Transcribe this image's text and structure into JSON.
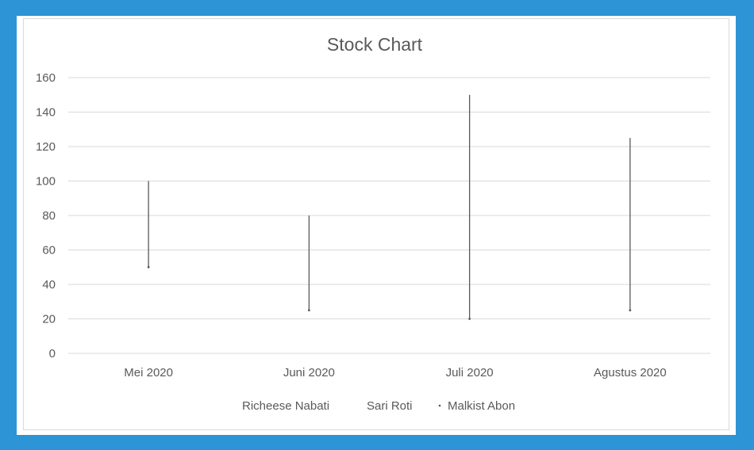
{
  "chart_data": {
    "type": "stock",
    "title": "Stock Chart",
    "categories": [
      "Mei 2020",
      "Juni 2020",
      "Juli 2020",
      "Agustus 2020"
    ],
    "ylim": [
      0,
      160
    ],
    "yticks": [
      0,
      20,
      40,
      60,
      80,
      100,
      120,
      140,
      160
    ],
    "grid": true,
    "legend_position": "bottom",
    "series": [
      {
        "name": "Richeese Nabati",
        "role": "high",
        "values": [
          100,
          80,
          150,
          125
        ]
      },
      {
        "name": "Sari Roti",
        "role": "low",
        "values": [
          50,
          25,
          20,
          25
        ]
      },
      {
        "name": "Malkist Abon",
        "role": "close",
        "values": [
          50,
          25,
          20,
          25
        ]
      }
    ],
    "colors": {
      "line": "#595959",
      "grid": "#d9d9d9",
      "text": "#595959",
      "border": "#2d94d6"
    }
  }
}
